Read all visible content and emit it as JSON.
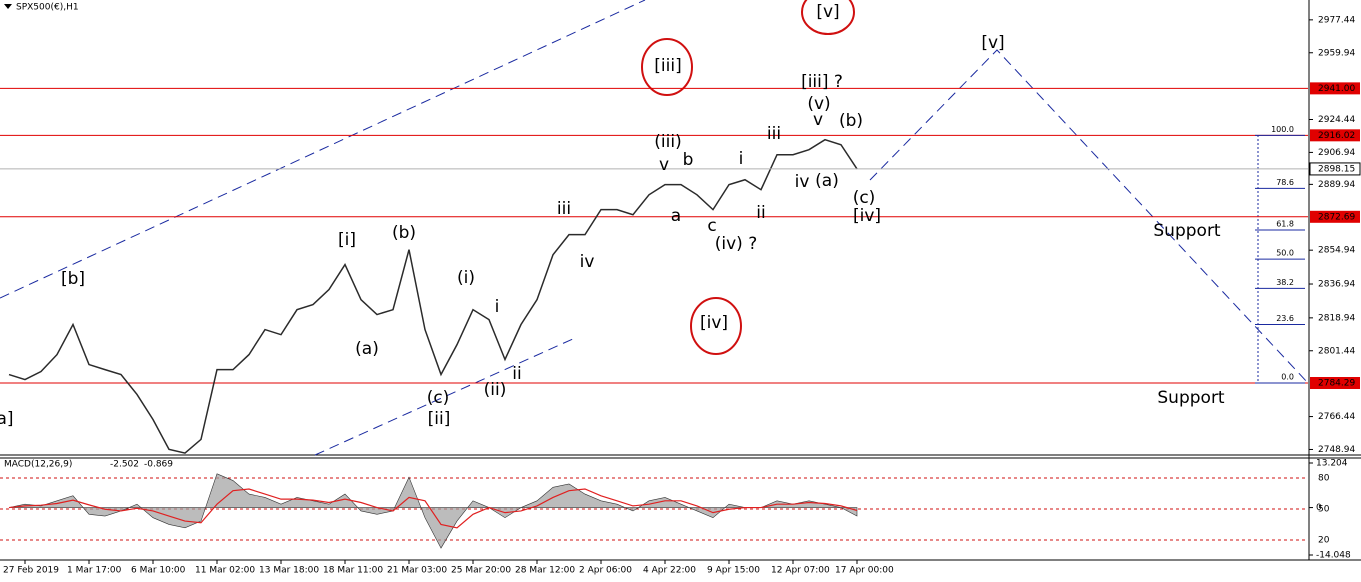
{
  "chart_data": {
    "type": "line",
    "title": "SPX500(€),H1",
    "categories": [
      null,
      "27 Feb 2019",
      null,
      null,
      null,
      "1 Mar 17:00",
      null,
      null,
      null,
      "6 Mar 10:00",
      null,
      null,
      null,
      "11 Mar 02:00",
      null,
      null,
      null,
      "13 Mar 18:00",
      null,
      null,
      null,
      "18 Mar 11:00",
      null,
      null,
      null,
      "21 Mar 03:00",
      null,
      null,
      null,
      "25 Mar 20:00",
      null,
      null,
      null,
      "28 Mar 12:00",
      null,
      null,
      null,
      "2 Apr 06:00",
      null,
      null,
      null,
      "4 Apr 22:00",
      null,
      null,
      null,
      "9 Apr 15:00",
      null,
      null,
      null,
      "12 Apr 07:00",
      null,
      null,
      null,
      "17 Apr 00:00"
    ],
    "series": [
      {
        "name": "SPX500",
        "color": "#2b2b2b",
        "values": [
          2788.8,
          2786.1,
          2790.4,
          2799.4,
          2815.4,
          2794.1,
          2791.4,
          2788.8,
          2778.2,
          2764.9,
          2749.0,
          2747.0,
          2754.3,
          2791.4,
          2791.4,
          2799.4,
          2812.7,
          2810.0,
          2823.3,
          2826.0,
          2834.0,
          2847.3,
          2828.6,
          2820.7,
          2823.3,
          2855.2,
          2812.7,
          2788.8,
          2804.7,
          2823.3,
          2818.0,
          2796.8,
          2815.4,
          2828.6,
          2852.5,
          2863.2,
          2863.2,
          2876.5,
          2876.5,
          2873.8,
          2884.4,
          2889.8,
          2889.8,
          2884.4,
          2876.5,
          2889.8,
          2892.4,
          2887.1,
          2905.7,
          2905.7,
          2908.4,
          2913.7,
          2911.0,
          2898.15
        ]
      }
    ],
    "ylim": [
      2746,
      2988
    ],
    "yticks": [
      2977.44,
      2959.94,
      2924.44,
      2906.94,
      2889.94,
      2854.94,
      2836.94,
      2818.94,
      2801.44,
      2766.44,
      2748.94
    ],
    "levels": [
      {
        "value": 2941,
        "label": "2941.00"
      },
      2916.02,
      2872.69,
      2784.29
    ],
    "level_color": "#e00000",
    "fibonacci": [
      {
        "value": 100,
        "label": "100.0"
      },
      78.6,
      61.8,
      {
        "value": 50,
        "label": "50.0"
      },
      38.2,
      23.6,
      {
        "value": 0,
        "label": "0.0"
      }
    ],
    "wave_labels": [
      {
        "text": "[b]",
        "color": "#2a7d12"
      },
      {
        "text": "[i]",
        "color": "#2a7d12"
      },
      {
        "text": "[ii]",
        "color": "#2a7d12"
      },
      {
        "text": "a]",
        "color": "#2a7d12"
      },
      {
        "text": "[iii] ?",
        "color": "#2a7d12"
      },
      {
        "text": "[iv]",
        "color": "#2a7d12"
      },
      {
        "text": "[v]",
        "color": "#2a7d12"
      },
      {
        "text": "[v]",
        "color": "#2a7d12"
      },
      {
        "text": "[iii]",
        "color": "#2a7d12"
      },
      {
        "text": "[iv]",
        "color": "#2a7d12"
      },
      {
        "text": "(b)",
        "color": "#4a4a4a"
      },
      {
        "text": "(a)",
        "color": "#4a4a4a"
      },
      {
        "text": "(c)",
        "color": "#4a4a4a"
      },
      {
        "text": "(i)",
        "color": "#4a4a4a"
      },
      {
        "text": "(ii)",
        "color": "#4a4a4a"
      },
      {
        "text": "(iii)",
        "color": "#4a4a4a"
      },
      {
        "text": "(iv) ?",
        "color": "#4a4a4a"
      },
      {
        "text": "(v)",
        "color": "#4a4a4a"
      },
      {
        "text": "(b)",
        "color": "#4a4a4a"
      },
      {
        "text": "(a)",
        "color": "#4a4a4a"
      },
      {
        "text": "(c)",
        "color": "#4a4a4a"
      },
      {
        "text": "i",
        "color": "#e020d0"
      },
      {
        "text": "ii",
        "color": "#e020d0"
      },
      {
        "text": "iii",
        "color": "#e020d0"
      },
      {
        "text": "iv",
        "color": "#e020d0"
      },
      {
        "text": "v",
        "color": "#e020d0"
      },
      {
        "text": "a",
        "color": "#e020d0"
      },
      {
        "text": "b",
        "color": "#e020d0"
      },
      {
        "text": "c",
        "color": "#e020d0"
      },
      {
        "text": "i",
        "color": "#e020d0"
      },
      {
        "text": "ii",
        "color": "#e020d0"
      },
      {
        "text": "iii",
        "color": "#e020d0"
      },
      {
        "text": "iv",
        "color": "#e020d0"
      },
      {
        "text": "v",
        "color": "#e020d0"
      },
      {
        "text": "Support",
        "color": "#d01010"
      },
      {
        "text": "Support",
        "color": "#d01010"
      }
    ],
    "indicator": {
      "name": "MACD(12,26,9)",
      "series": [
        {
          "name": "MACD",
          "color": "#a0a0a0",
          "values": [
            0,
            1,
            0.5,
            2,
            3.5,
            -2,
            -2.5,
            -1,
            1,
            -3,
            -5,
            -6,
            -4,
            10,
            8,
            4,
            3,
            1,
            3,
            2,
            1,
            4,
            -1,
            -2,
            -1,
            9,
            -3,
            -12,
            -4,
            2,
            0,
            -3,
            0,
            2,
            6,
            7,
            4,
            2,
            1,
            -1,
            2,
            3,
            1,
            -1,
            -3,
            1,
            0,
            0,
            2,
            1,
            2,
            1,
            0,
            -2.502
          ]
        },
        {
          "name": "Signal",
          "color": "#e02020",
          "values": [
            0,
            0.5,
            0.7,
            1.2,
            2.2,
            0.8,
            -0.5,
            -1,
            -0.2,
            -1,
            -2.5,
            -4,
            -4.5,
            1,
            5,
            5.5,
            4,
            2.5,
            2.5,
            2.2,
            1.5,
            2.5,
            1.5,
            0,
            -1,
            3,
            2,
            -5,
            -6,
            -2,
            0,
            -1.5,
            -1,
            0.5,
            3,
            5,
            5.5,
            3.5,
            2,
            0.5,
            1,
            2,
            2,
            0.5,
            -1.5,
            -0.5,
            0,
            0,
            1,
            1,
            1.5,
            1.2,
            0.5,
            -0.869
          ]
        }
      ],
      "ylim": [
        -14.048,
        13.204
      ],
      "yticks": [
        13.204,
        0,
        -14.048
      ],
      "y2lim": [
        5.5,
        94.5
      ],
      "y2ticks": [
        80,
        50,
        20
      ]
    }
  }
}
